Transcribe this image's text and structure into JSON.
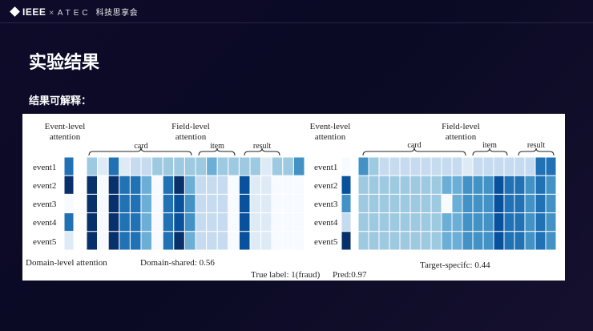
{
  "header": {
    "brand": "IEEE",
    "separator": "×",
    "partner": "ATEC",
    "event_name": "科技思享会"
  },
  "slide": {
    "title": "实验结果",
    "subtitle": "结果可解释："
  },
  "figure": {
    "colors": {
      "palette": [
        "#f7fbff",
        "#deebf7",
        "#c6dbef",
        "#9ecae1",
        "#6baed6",
        "#4292c6",
        "#2171b5",
        "#08519c",
        "#08306b"
      ]
    },
    "events": [
      "event1",
      "event2",
      "event3",
      "event4",
      "event5"
    ],
    "left": {
      "event_header": [
        "Event-level",
        "attention"
      ],
      "field_header": [
        "Field-level",
        "attention"
      ],
      "groups": {
        "card": "card",
        "item": "item",
        "result": "result"
      },
      "event_attention": [
        6,
        8,
        0,
        6,
        1
      ],
      "field_rows": [
        [
          3,
          1,
          6,
          1,
          2,
          2,
          3,
          3,
          3,
          3,
          3,
          4,
          3,
          3,
          3,
          3,
          1,
          3,
          3,
          5
        ],
        [
          8,
          0,
          8,
          6,
          6,
          4,
          0,
          6,
          8,
          4,
          2,
          2,
          2,
          0,
          7,
          1,
          1,
          0,
          0,
          0
        ],
        [
          8,
          0,
          8,
          6,
          6,
          4,
          0,
          6,
          7,
          5,
          2,
          2,
          2,
          0,
          7,
          1,
          1,
          0,
          0,
          0
        ],
        [
          8,
          0,
          8,
          6,
          6,
          4,
          0,
          6,
          7,
          5,
          2,
          2,
          2,
          0,
          7,
          1,
          1,
          0,
          0,
          0
        ],
        [
          8,
          0,
          8,
          6,
          6,
          4,
          0,
          6,
          8,
          4,
          2,
          2,
          2,
          0,
          7,
          1,
          1,
          0,
          0,
          0
        ]
      ],
      "domain_label": "Domain-level attention",
      "share_label": "Domain-shared: 0.56"
    },
    "right": {
      "event_header": [
        "Event-level",
        "attention"
      ],
      "field_header": [
        "Field-level",
        "attention"
      ],
      "groups": {
        "card": "card",
        "item": "item",
        "result": "result"
      },
      "event_attention": [
        0,
        7,
        5,
        2,
        8
      ],
      "field_rows": [
        [
          5,
          3,
          2,
          2,
          2,
          2,
          2,
          2,
          2,
          2,
          1,
          2,
          2,
          2,
          2,
          2,
          2,
          6,
          6
        ],
        [
          3,
          3,
          3,
          3,
          3,
          3,
          3,
          3,
          4,
          4,
          5,
          5,
          5,
          7,
          6,
          6,
          5,
          6,
          5
        ],
        [
          3,
          3,
          3,
          3,
          3,
          3,
          3,
          3,
          0,
          4,
          5,
          5,
          5,
          7,
          6,
          6,
          5,
          6,
          5
        ],
        [
          3,
          3,
          3,
          3,
          3,
          3,
          3,
          3,
          4,
          4,
          5,
          5,
          5,
          7,
          6,
          6,
          5,
          6,
          5
        ],
        [
          3,
          3,
          3,
          3,
          3,
          3,
          3,
          3,
          4,
          4,
          5,
          5,
          5,
          7,
          6,
          6,
          5,
          6,
          5
        ]
      ],
      "share_label": "Target-specifc: 0.44"
    },
    "footer": {
      "true_label": "True label: 1(fraud)",
      "pred": "Pred:0.97"
    }
  }
}
